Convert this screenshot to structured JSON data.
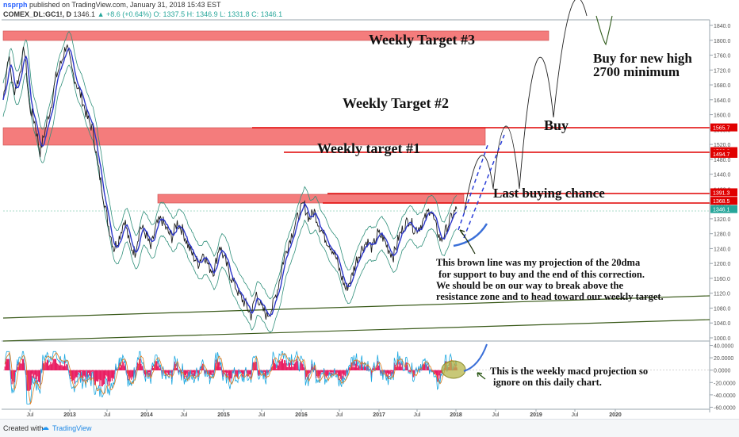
{
  "header": {
    "author": "nsprph",
    "published": "published on TradingView.com, January 31, 2018 15:43 EST",
    "symbol": "COMEX_DL:GC1!, D",
    "last": "1346.1",
    "change": "▲ +8.6 (+0.64%)",
    "ohlc": "O: 1337.5  H: 1346.9  L: 1331.8  C: 1346.1"
  },
  "footer": {
    "created_with": "Created with",
    "brand": "TradingView"
  },
  "colors": {
    "zone": "#f47c7c",
    "hline": "#e00000",
    "bb": "#2f8f7a",
    "ma": "#2b35c9",
    "price": "#1c1c1c",
    "projection": "#3a6fd8",
    "trend": "#3a5a1a",
    "macd_pos": "#e91e63",
    "macd_line": "#1aa7e0",
    "signal_line": "#e07a1a",
    "highlight": "#b5b54a"
  },
  "chart_data": [
    {
      "type": "line",
      "title": "COMEX_DL:GC1!, D",
      "x_ticks": [
        "Jul",
        "2013",
        "Jul",
        "2014",
        "Jul",
        "2015",
        "Jul",
        "2016",
        "Jul",
        "2017",
        "Jul",
        "2018",
        "Jul",
        "2019",
        "Jul",
        "2020"
      ],
      "y_ticks": [
        1840,
        1800,
        1760,
        1720,
        1680,
        1640,
        1600,
        1560,
        1520,
        1480,
        1440,
        1400,
        1360,
        1320,
        1280,
        1240,
        1200,
        1160,
        1120,
        1080,
        1040,
        1000
      ],
      "ylim": [
        985,
        1862
      ],
      "series": [
        {
          "values": [
            1640,
            1760,
            1660,
            1700,
            1780,
            1620,
            1580,
            1500,
            1560,
            1620,
            1700,
            1740,
            1790,
            1720,
            1680,
            1640,
            1590,
            1560,
            1460,
            1380,
            1300,
            1240,
            1270,
            1320,
            1250,
            1230,
            1300,
            1280,
            1240,
            1300,
            1320,
            1290,
            1270,
            1310,
            1290,
            1250,
            1220,
            1200,
            1230,
            1190,
            1180,
            1250,
            1210,
            1170,
            1140,
            1110,
            1090,
            1060,
            1120,
            1080,
            1060,
            1080,
            1130,
            1200,
            1250,
            1290,
            1330,
            1360,
            1320,
            1340,
            1300,
            1270,
            1250,
            1220,
            1170,
            1130,
            1160,
            1210,
            1240,
            1260,
            1240,
            1280,
            1270,
            1240,
            1220,
            1270,
            1300,
            1320,
            1290,
            1300,
            1320,
            1350,
            1300,
            1260,
            1290,
            1325,
            1346
          ]
        }
      ],
      "price_labels": [
        "1565.7",
        "1502.0",
        "1494.7",
        "1391.3",
        "1368.5",
        "1346.1"
      ],
      "annotations": [
        "Weekly Target #3",
        "Weekly Target #2",
        "Weekly target #1",
        "Buy",
        "Buy  for new high",
        "2700 minimum",
        "Last buying chance",
        "This brown line was my projection of the 20dma",
        "for support to buy and the end of this correction.",
        "We should be on our way to break above the",
        "resistance zone and to head toward our weekly target."
      ]
    },
    {
      "type": "bar",
      "title": "MACD",
      "y_ticks": [
        "40.0000",
        "20.0000",
        "0.0000",
        "-20.0000",
        "-40.0000",
        "-60.0000"
      ],
      "ylim": [
        -62,
        42
      ],
      "annotations": [
        "This is the weekly macd projection so",
        "ignore on this daily chart."
      ]
    }
  ]
}
